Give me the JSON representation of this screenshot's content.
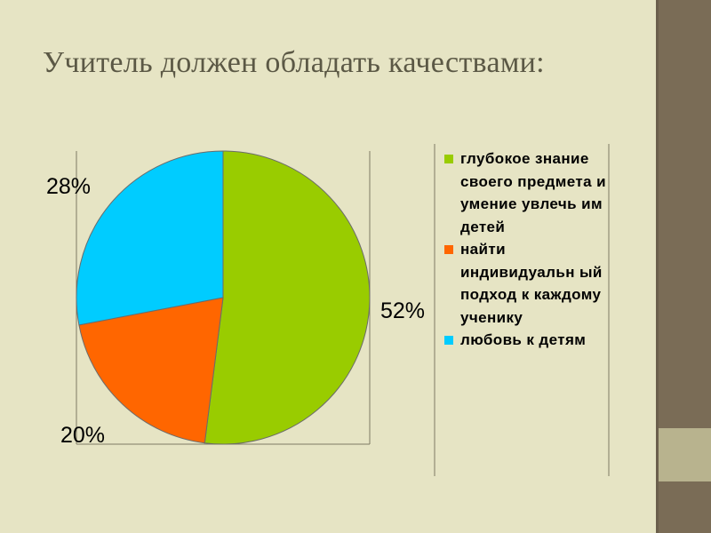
{
  "slide": {
    "title": "Учитель должен обладать качествами:"
  },
  "colors": {
    "background": "#e6e4c4",
    "frame_line": "#7e7a63",
    "slice_green": "#99cc00",
    "slice_orange": "#ff6600",
    "slice_blue": "#00ccff"
  },
  "chart_data": {
    "type": "pie",
    "title": "Учитель должен обладать качествами:",
    "start_angle": "12 o'clock, clockwise",
    "legend_placement": "right",
    "series": [
      {
        "name": "глубокое знание своего предмета и умение увлечь им детей",
        "value": 52,
        "label": "52%",
        "color": "#99cc00"
      },
      {
        "name": "найти индивидуальный подход к каждому ученику",
        "value": 20,
        "label": "20%",
        "color": "#ff6600"
      },
      {
        "name": "любовь к детям",
        "value": 28,
        "label": "28%",
        "color": "#00ccff"
      }
    ]
  },
  "legend": {
    "items": [
      {
        "text": "глубокое знание своего предмета и умение увлечь им детей",
        "color": "#99cc00"
      },
      {
        "text": "найти индивидуальн ый подход к каждому ученику",
        "color": "#ff6600"
      },
      {
        "text": "любовь к детям",
        "color": "#00ccff"
      }
    ]
  }
}
